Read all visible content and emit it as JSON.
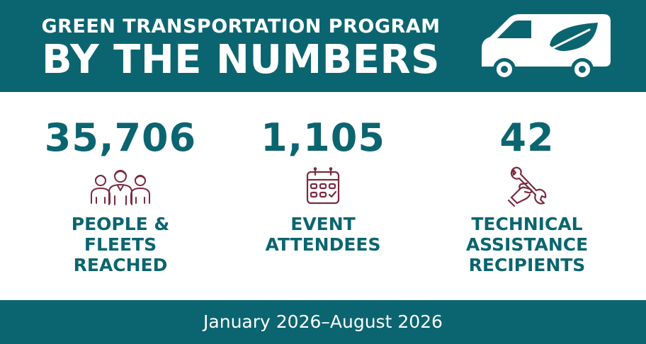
{
  "header": {
    "subtitle": "GREEN TRANSPORTATION PROGRAM",
    "title": "BY THE NUMBERS",
    "icon": "electric-van-leaf-icon"
  },
  "stats": [
    {
      "value": "35,706",
      "label": "PEOPLE &\nFLEETS\nREACHED",
      "icon": "people-group-icon"
    },
    {
      "value": "1,105",
      "label": "EVENT\nATTENDEES",
      "icon": "calendar-icon"
    },
    {
      "value": "42",
      "label": "TECHNICAL\nASSISTANCE\nRECIPIENTS",
      "icon": "hand-wrench-icon"
    }
  ],
  "footer": {
    "date_range": "January 2026–August 2026"
  },
  "colors": {
    "teal": "#0b6570",
    "maroon": "#7a2a3e",
    "white": "#ffffff"
  }
}
